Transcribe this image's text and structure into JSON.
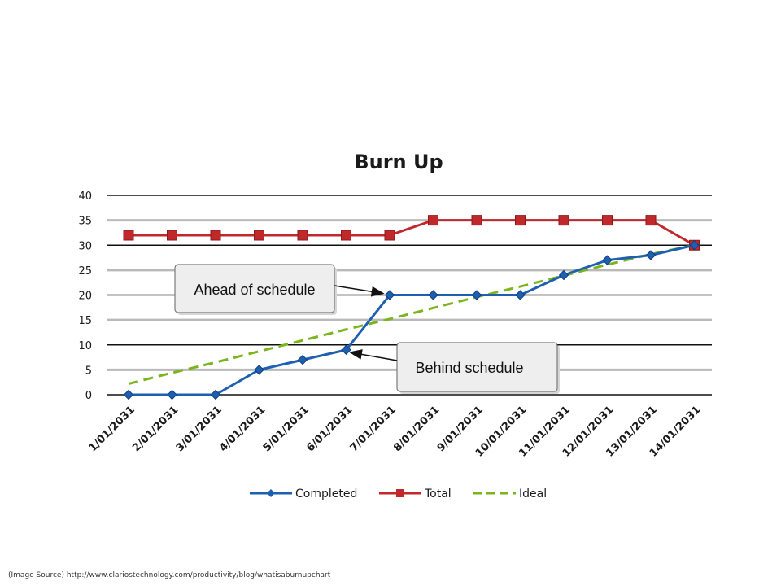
{
  "colors": {
    "completed": "#1f5fb0",
    "total": "#c0282c",
    "ideal": "#7ab51d",
    "grid": "#111111",
    "grid_band": "#b9b9b9",
    "callout_bg": "#eeeeee",
    "callout_border": "#7a7a7a"
  },
  "chart_data": {
    "type": "line",
    "title": "Burn Up",
    "xlabel": "",
    "ylabel": "",
    "ylim": [
      0,
      40
    ],
    "yticks": [
      0,
      5,
      10,
      15,
      20,
      25,
      30,
      35,
      40
    ],
    "grid": true,
    "legend_position": "bottom",
    "categories": [
      "1/01/2031",
      "2/01/2031",
      "3/01/2031",
      "4/01/2031",
      "5/01/2031",
      "6/01/2031",
      "7/01/2031",
      "8/01/2031",
      "9/01/2031",
      "10/01/2031",
      "11/01/2031",
      "12/01/2031",
      "13/01/2031",
      "14/01/2031"
    ],
    "series": [
      {
        "name": "Completed",
        "style": "solid",
        "marker": "diamond",
        "color": "#1f5fb0",
        "values": [
          0,
          0,
          0,
          5,
          7,
          9,
          20,
          20,
          20,
          20,
          24,
          27,
          28,
          30
        ]
      },
      {
        "name": "Total",
        "style": "solid",
        "marker": "square",
        "color": "#c0282c",
        "values": [
          32,
          32,
          32,
          32,
          32,
          32,
          32,
          35,
          35,
          35,
          35,
          35,
          35,
          30
        ]
      },
      {
        "name": "Ideal",
        "style": "dashed",
        "marker": "none",
        "color": "#7ab51d",
        "values": [
          2.2,
          4.4,
          6.5,
          8.7,
          10.9,
          13.1,
          15.2,
          17.4,
          19.6,
          21.7,
          23.9,
          26.1,
          28.2,
          30
        ]
      }
    ],
    "annotations": [
      {
        "text": "Ahead of schedule",
        "target_category": "7/01/2031",
        "target_value": 20
      },
      {
        "text": "Behind schedule",
        "target_category": "6/01/2031",
        "target_value": 9
      }
    ]
  },
  "source_note": "(Image Source) http://www.clariostechnology.com/productivity/blog/whatisaburnupchart"
}
